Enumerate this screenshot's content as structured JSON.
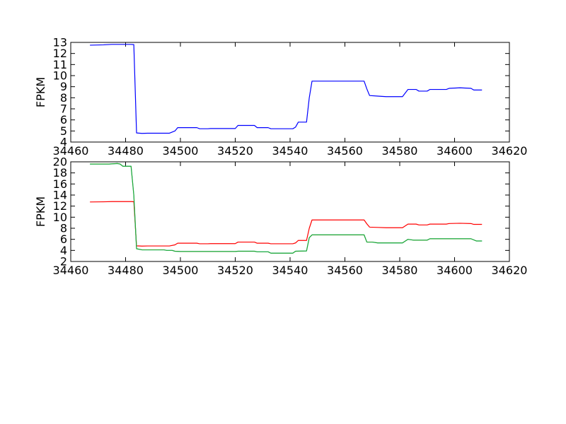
{
  "chart_data": [
    {
      "type": "line",
      "ylabel": "FPKM",
      "xlim": [
        34460,
        34620
      ],
      "ylim": [
        4,
        13
      ],
      "xticks": [
        34460,
        34480,
        34500,
        34520,
        34540,
        34560,
        34580,
        34600,
        34620
      ],
      "yticks": [
        4,
        5,
        6,
        7,
        8,
        9,
        10,
        11,
        12,
        13
      ],
      "series": [
        {
          "color": "#0000ff",
          "points": [
            [
              34467,
              12.75
            ],
            [
              34472,
              12.78
            ],
            [
              34475,
              12.82
            ],
            [
              34482,
              12.82
            ],
            [
              34483,
              12.8
            ],
            [
              34484,
              4.82
            ],
            [
              34486,
              4.78
            ],
            [
              34488,
              4.8
            ],
            [
              34496,
              4.8
            ],
            [
              34498,
              5.0
            ],
            [
              34499,
              5.3
            ],
            [
              34500,
              5.3
            ],
            [
              34503,
              5.3
            ],
            [
              34506,
              5.3
            ],
            [
              34507,
              5.2
            ],
            [
              34510,
              5.2
            ],
            [
              34511,
              5.22
            ],
            [
              34520,
              5.22
            ],
            [
              34521,
              5.5
            ],
            [
              34527,
              5.5
            ],
            [
              34528,
              5.3
            ],
            [
              34532,
              5.3
            ],
            [
              34533,
              5.2
            ],
            [
              34541,
              5.2
            ],
            [
              34542,
              5.35
            ],
            [
              34543,
              5.8
            ],
            [
              34546,
              5.8
            ],
            [
              34547,
              8.0
            ],
            [
              34548,
              9.5
            ],
            [
              34567,
              9.5
            ],
            [
              34568,
              8.8
            ],
            [
              34569,
              8.2
            ],
            [
              34572,
              8.15
            ],
            [
              34575,
              8.1
            ],
            [
              34581,
              8.1
            ],
            [
              34583,
              8.75
            ],
            [
              34586,
              8.75
            ],
            [
              34587,
              8.6
            ],
            [
              34590,
              8.6
            ],
            [
              34591,
              8.75
            ],
            [
              34597,
              8.75
            ],
            [
              34598,
              8.85
            ],
            [
              34602,
              8.9
            ],
            [
              34606,
              8.85
            ],
            [
              34607,
              8.7
            ],
            [
              34610,
              8.7
            ]
          ]
        }
      ]
    },
    {
      "type": "line",
      "ylabel": "FPKM",
      "xlim": [
        34460,
        34620
      ],
      "ylim": [
        2,
        20
      ],
      "xticks": [
        34460,
        34480,
        34500,
        34520,
        34540,
        34560,
        34580,
        34600,
        34620
      ],
      "yticks": [
        2,
        4,
        6,
        8,
        10,
        12,
        14,
        16,
        18,
        20
      ],
      "series": [
        {
          "color": "#ff0000",
          "points": [
            [
              34467,
              12.75
            ],
            [
              34472,
              12.78
            ],
            [
              34475,
              12.82
            ],
            [
              34482,
              12.82
            ],
            [
              34483,
              12.8
            ],
            [
              34484,
              4.82
            ],
            [
              34486,
              4.78
            ],
            [
              34488,
              4.8
            ],
            [
              34496,
              4.8
            ],
            [
              34498,
              5.0
            ],
            [
              34499,
              5.3
            ],
            [
              34500,
              5.3
            ],
            [
              34503,
              5.3
            ],
            [
              34506,
              5.3
            ],
            [
              34507,
              5.2
            ],
            [
              34510,
              5.2
            ],
            [
              34511,
              5.22
            ],
            [
              34520,
              5.22
            ],
            [
              34521,
              5.5
            ],
            [
              34527,
              5.5
            ],
            [
              34528,
              5.3
            ],
            [
              34532,
              5.3
            ],
            [
              34533,
              5.2
            ],
            [
              34541,
              5.2
            ],
            [
              34542,
              5.35
            ],
            [
              34543,
              5.8
            ],
            [
              34546,
              5.8
            ],
            [
              34547,
              8.0
            ],
            [
              34548,
              9.5
            ],
            [
              34567,
              9.5
            ],
            [
              34568,
              8.8
            ],
            [
              34569,
              8.2
            ],
            [
              34572,
              8.15
            ],
            [
              34575,
              8.1
            ],
            [
              34581,
              8.1
            ],
            [
              34583,
              8.75
            ],
            [
              34586,
              8.75
            ],
            [
              34587,
              8.6
            ],
            [
              34590,
              8.6
            ],
            [
              34591,
              8.75
            ],
            [
              34597,
              8.75
            ],
            [
              34598,
              8.85
            ],
            [
              34602,
              8.9
            ],
            [
              34606,
              8.85
            ],
            [
              34607,
              8.7
            ],
            [
              34610,
              8.7
            ]
          ]
        },
        {
          "color": "#00ffff",
          "points": [
            [
              34467,
              19.6
            ],
            [
              34474,
              19.6
            ],
            [
              34477,
              19.7
            ],
            [
              34478,
              19.6
            ],
            [
              34479,
              19.2
            ],
            [
              34482,
              19.2
            ],
            [
              34483,
              14.0
            ],
            [
              34484,
              4.3
            ],
            [
              34486,
              4.1
            ],
            [
              34488,
              4.1
            ],
            [
              34494,
              4.1
            ],
            [
              34495,
              4.0
            ],
            [
              34497,
              4.0
            ],
            [
              34498,
              3.85
            ],
            [
              34500,
              3.8
            ],
            [
              34520,
              3.8
            ],
            [
              34521,
              3.85
            ],
            [
              34527,
              3.85
            ],
            [
              34528,
              3.75
            ],
            [
              34532,
              3.75
            ],
            [
              34533,
              3.5
            ],
            [
              34541,
              3.5
            ],
            [
              34542,
              3.85
            ],
            [
              34546,
              3.9
            ],
            [
              34547,
              6.3
            ],
            [
              34548,
              6.8
            ],
            [
              34567,
              6.8
            ],
            [
              34568,
              5.5
            ],
            [
              34570,
              5.5
            ],
            [
              34572,
              5.35
            ],
            [
              34581,
              5.35
            ],
            [
              34583,
              6.0
            ],
            [
              34585,
              5.85
            ],
            [
              34590,
              5.85
            ],
            [
              34591,
              6.1
            ],
            [
              34606,
              6.1
            ],
            [
              34608,
              5.7
            ],
            [
              34610,
              5.7
            ]
          ]
        },
        {
          "color": "#2ca02c",
          "points": [
            [
              34467,
              19.6
            ],
            [
              34474,
              19.6
            ],
            [
              34477,
              19.7
            ],
            [
              34478,
              19.6
            ],
            [
              34479,
              19.2
            ],
            [
              34482,
              19.2
            ],
            [
              34483,
              14.0
            ],
            [
              34484,
              4.3
            ],
            [
              34486,
              4.1
            ],
            [
              34488,
              4.1
            ],
            [
              34494,
              4.1
            ],
            [
              34495,
              4.0
            ],
            [
              34497,
              4.0
            ],
            [
              34498,
              3.85
            ],
            [
              34500,
              3.8
            ],
            [
              34520,
              3.8
            ],
            [
              34521,
              3.85
            ],
            [
              34527,
              3.85
            ],
            [
              34528,
              3.75
            ],
            [
              34532,
              3.75
            ],
            [
              34533,
              3.5
            ],
            [
              34541,
              3.5
            ],
            [
              34542,
              3.85
            ],
            [
              34546,
              3.9
            ],
            [
              34547,
              6.3
            ],
            [
              34548,
              6.8
            ],
            [
              34567,
              6.8
            ],
            [
              34568,
              5.5
            ],
            [
              34570,
              5.5
            ],
            [
              34572,
              5.35
            ],
            [
              34581,
              5.35
            ],
            [
              34583,
              6.0
            ],
            [
              34585,
              5.85
            ],
            [
              34590,
              5.85
            ],
            [
              34591,
              6.1
            ],
            [
              34606,
              6.1
            ],
            [
              34608,
              5.7
            ],
            [
              34610,
              5.7
            ]
          ]
        }
      ]
    }
  ]
}
